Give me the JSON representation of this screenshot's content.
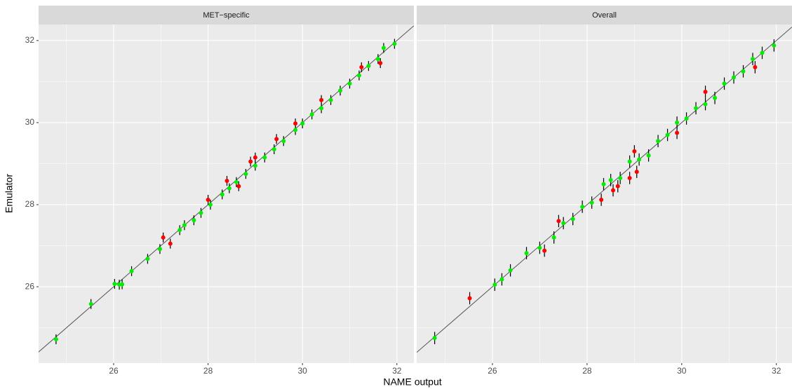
{
  "axis_labels": {
    "x": "NAME output",
    "y": "Emulator"
  },
  "chart_data": [
    {
      "type": "scatter",
      "title": "MET−specific",
      "xlim": [
        24.41,
        32.36
      ],
      "ylim": [
        24.14,
        32.39
      ],
      "xticks": [
        26,
        28,
        30,
        32
      ],
      "yticks": [
        26,
        28,
        30,
        32
      ],
      "grid": true,
      "series": [
        {
          "color": "#00ee00",
          "x": [
            24.78,
            25.52,
            26.02,
            26.12,
            26.18,
            26.38,
            26.72,
            26.98,
            27.4,
            27.5,
            27.7,
            27.85,
            28.05,
            28.3,
            28.45,
            28.6,
            28.8,
            29.0,
            29.2,
            29.4,
            29.6,
            29.85,
            30.0,
            30.2,
            30.4,
            30.6,
            30.8,
            31.0,
            31.2,
            31.4,
            31.6,
            31.72,
            31.95
          ],
          "values": [
            24.72,
            25.58,
            26.07,
            26.05,
            26.06,
            26.38,
            26.68,
            26.92,
            27.38,
            27.5,
            27.62,
            27.8,
            28.0,
            28.25,
            28.4,
            28.55,
            28.75,
            28.95,
            29.15,
            29.35,
            29.55,
            29.82,
            29.98,
            30.2,
            30.35,
            30.55,
            30.78,
            30.95,
            31.15,
            31.38,
            31.55,
            31.82,
            31.92
          ],
          "errors": [
            0.12,
            0.12,
            0.12,
            0.12,
            0.12,
            0.12,
            0.12,
            0.12,
            0.12,
            0.12,
            0.12,
            0.12,
            0.12,
            0.12,
            0.12,
            0.12,
            0.12,
            0.12,
            0.12,
            0.12,
            0.12,
            0.12,
            0.12,
            0.12,
            0.12,
            0.12,
            0.12,
            0.12,
            0.12,
            0.12,
            0.12,
            0.12,
            0.12
          ]
        },
        {
          "color": "#ff0000",
          "x": [
            27.05,
            27.2,
            28.0,
            28.4,
            28.65,
            28.9,
            29.0,
            29.45,
            29.85,
            30.4,
            31.25,
            31.65
          ],
          "values": [
            27.2,
            27.05,
            28.12,
            28.58,
            28.45,
            29.05,
            29.15,
            29.6,
            29.98,
            30.55,
            31.35,
            31.45
          ],
          "errors": [
            0.12,
            0.12,
            0.12,
            0.12,
            0.12,
            0.12,
            0.12,
            0.12,
            0.12,
            0.12,
            0.12,
            0.12
          ]
        }
      ]
    },
    {
      "type": "scatter",
      "title": "Overall",
      "xlim": [
        24.4,
        32.33
      ],
      "ylim": [
        24.14,
        32.39
      ],
      "xticks": [
        26,
        28,
        30,
        32
      ],
      "yticks": [
        26,
        28,
        30,
        32
      ],
      "grid": true,
      "series": [
        {
          "color": "#00ee00",
          "x": [
            24.78,
            26.05,
            26.2,
            26.38,
            26.72,
            27.0,
            27.3,
            27.5,
            27.7,
            27.9,
            28.1,
            28.35,
            28.5,
            28.7,
            28.9,
            29.1,
            29.3,
            29.5,
            29.7,
            29.9,
            30.1,
            30.3,
            30.5,
            30.7,
            30.9,
            31.1,
            31.3,
            31.5,
            31.7,
            31.95
          ],
          "values": [
            24.75,
            26.05,
            26.18,
            26.4,
            26.82,
            26.95,
            27.2,
            27.55,
            27.65,
            27.95,
            28.05,
            28.5,
            28.6,
            28.65,
            29.05,
            29.1,
            29.2,
            29.55,
            29.7,
            30.0,
            30.1,
            30.35,
            30.45,
            30.6,
            30.95,
            31.1,
            31.25,
            31.55,
            31.7,
            31.88
          ],
          "errors": [
            0.15,
            0.15,
            0.15,
            0.15,
            0.15,
            0.15,
            0.15,
            0.15,
            0.15,
            0.15,
            0.15,
            0.15,
            0.15,
            0.15,
            0.15,
            0.15,
            0.15,
            0.15,
            0.15,
            0.15,
            0.15,
            0.15,
            0.15,
            0.15,
            0.15,
            0.15,
            0.15,
            0.15,
            0.15,
            0.15
          ]
        },
        {
          "color": "#ff0000",
          "x": [
            25.52,
            27.1,
            27.4,
            28.3,
            28.55,
            28.65,
            28.9,
            29.0,
            29.05,
            29.9,
            30.5,
            31.55
          ],
          "values": [
            25.72,
            26.88,
            27.6,
            28.12,
            28.35,
            28.45,
            28.65,
            29.3,
            28.8,
            29.75,
            30.75,
            31.35
          ],
          "errors": [
            0.15,
            0.15,
            0.15,
            0.15,
            0.15,
            0.15,
            0.15,
            0.15,
            0.15,
            0.15,
            0.15,
            0.15
          ]
        }
      ]
    }
  ]
}
